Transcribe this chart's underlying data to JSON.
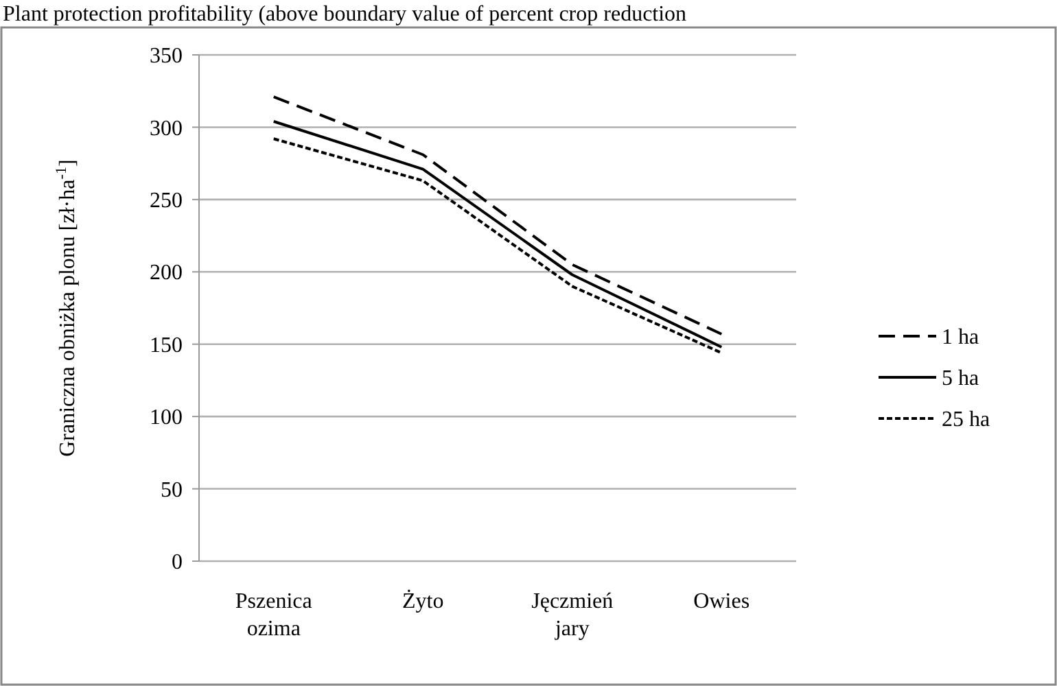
{
  "chart_data": {
    "type": "line",
    "title": "Plant protection profitability (above boundary value of percent crop reduction",
    "ylabel": "Graniczna obniżka plonu [zł·ha$^{-1}$]",
    "categories": [
      "Pszenica ozima",
      "Żyto",
      "Jęczmień jary",
      "Owies"
    ],
    "series": [
      {
        "name": "1 ha",
        "color": "#000000",
        "line_style": "dashed",
        "values": [
          321,
          281,
          205,
          157
        ]
      },
      {
        "name": "5 ha",
        "color": "#000000",
        "line_style": "solid",
        "values": [
          304,
          271,
          198,
          148
        ]
      },
      {
        "name": "25 ha",
        "color": "#000000",
        "line_style": "dotted",
        "values": [
          292,
          263,
          190,
          144
        ]
      }
    ],
    "ylim": [
      0,
      350
    ],
    "yticks": [
      0,
      50,
      100,
      150,
      200,
      250,
      300,
      350
    ],
    "grid": "y",
    "legend": "right"
  }
}
